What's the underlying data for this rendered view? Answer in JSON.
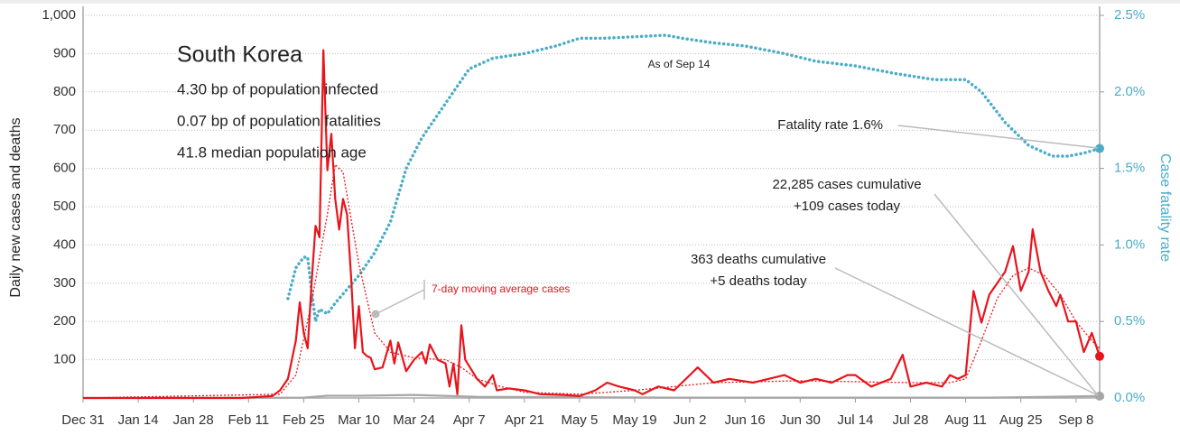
{
  "chart_data": {
    "type": "line",
    "title": "South Korea",
    "subtitle_lines": [
      "4.30 bp of population infected",
      "0.07 bp of population fatalities",
      "41.8 median population age"
    ],
    "ylabel": "Daily new cases and deaths",
    "y2label": "Case fatality rate",
    "annotations": [
      "As of Sep 14",
      "Fatality rate 1.6%",
      "22,285 cases cumulative",
      "+109 cases today",
      "363 deaths cumulative",
      "+5 deaths today"
    ],
    "xlim": [
      0,
      258
    ],
    "xticks": [
      {
        "value": 0,
        "label": "Dec 31"
      },
      {
        "value": 14,
        "label": "Jan 14"
      },
      {
        "value": 28,
        "label": "Jan 28"
      },
      {
        "value": 42,
        "label": "Feb 11"
      },
      {
        "value": 56,
        "label": "Feb 25"
      },
      {
        "value": 70,
        "label": "Mar 10"
      },
      {
        "value": 84,
        "label": "Mar 24"
      },
      {
        "value": 98,
        "label": "Apr 7"
      },
      {
        "value": 112,
        "label": "Apr 21"
      },
      {
        "value": 126,
        "label": "May 5"
      },
      {
        "value": 140,
        "label": "May 19"
      },
      {
        "value": 154,
        "label": "Jun 2"
      },
      {
        "value": 168,
        "label": "Jun 16"
      },
      {
        "value": 182,
        "label": "Jun 30"
      },
      {
        "value": 196,
        "label": "Jul 14"
      },
      {
        "value": 210,
        "label": "Jul 28"
      },
      {
        "value": 224,
        "label": "Aug 11"
      },
      {
        "value": 238,
        "label": "Aug 25"
      },
      {
        "value": 252,
        "label": "Sep 8"
      }
    ],
    "ylim": [
      0,
      1000
    ],
    "yticks": [
      100,
      200,
      300,
      400,
      500,
      600,
      700,
      800,
      900,
      {
        "value": 1000,
        "label": "1,000"
      }
    ],
    "y2lim": [
      0,
      2.5
    ],
    "y2ticks": [
      {
        "value": 0,
        "label": "0.0%"
      },
      {
        "value": 0.5,
        "label": "0.5%"
      },
      {
        "value": 1,
        "label": "1.0%"
      },
      {
        "value": 1.5,
        "label": "1.5%"
      },
      {
        "value": 2,
        "label": "2.0%"
      },
      {
        "value": 2.5,
        "label": "2.5%"
      }
    ],
    "grid": true,
    "series": [
      {
        "color": "#e8141c",
        "style": "solid",
        "end_marker": true,
        "x": [
          0,
          40,
          48,
          50,
          52,
          54,
          55,
          56,
          57,
          58,
          59,
          60,
          61,
          62,
          63,
          64,
          65,
          66,
          67,
          68,
          69,
          70,
          71,
          72,
          73,
          74,
          76,
          78,
          79,
          80,
          82,
          84,
          86,
          87,
          88,
          90,
          92,
          93,
          94,
          95,
          96,
          97,
          100,
          102,
          104,
          105,
          108,
          112,
          116,
          122,
          126,
          130,
          133,
          136,
          140,
          142,
          146,
          150,
          156,
          160,
          164,
          170,
          174,
          178,
          182,
          186,
          190,
          194,
          196,
          200,
          205,
          208,
          210,
          214,
          218,
          220,
          222,
          224,
          226,
          228,
          230,
          232,
          234,
          236,
          238,
          240,
          241,
          243,
          245,
          247,
          248,
          250,
          252,
          254,
          256,
          258
        ],
        "values": [
          0,
          0,
          5,
          20,
          50,
          150,
          250,
          170,
          130,
          300,
          450,
          420,
          909,
          595,
          690,
          520,
          440,
          520,
          480,
          320,
          130,
          240,
          120,
          110,
          105,
          75,
          80,
          150,
          90,
          145,
          70,
          100,
          120,
          90,
          140,
          100,
          90,
          30,
          90,
          10,
          190,
          100,
          50,
          30,
          60,
          20,
          25,
          20,
          10,
          8,
          5,
          20,
          40,
          30,
          20,
          10,
          30,
          20,
          80,
          40,
          50,
          40,
          50,
          60,
          40,
          50,
          40,
          60,
          60,
          30,
          50,
          113,
          30,
          40,
          30,
          60,
          50,
          60,
          280,
          197,
          270,
          300,
          330,
          397,
          280,
          330,
          441,
          330,
          280,
          240,
          270,
          200,
          200,
          120,
          170,
          109
        ]
      },
      {
        "name": "7-day moving average cases",
        "color": "#e8141c",
        "style": "dotted",
        "x": [
          0,
          50,
          54,
          58,
          62,
          64,
          66,
          70,
          74,
          78,
          84,
          92,
          96,
          100,
          106,
          112,
          126,
          140,
          150,
          160,
          182,
          210,
          220,
          224,
          228,
          232,
          236,
          240,
          244,
          248,
          252,
          256,
          258
        ],
        "values": [
          0,
          10,
          60,
          250,
          480,
          610,
          590,
          350,
          170,
          120,
          105,
          100,
          80,
          50,
          30,
          15,
          10,
          20,
          30,
          40,
          45,
          40,
          40,
          50,
          150,
          260,
          320,
          340,
          320,
          270,
          200,
          150,
          130
        ]
      },
      {
        "color": "#4bacc6",
        "style": "dots",
        "axis": "y2",
        "end_marker": true,
        "x": [
          52,
          54,
          56,
          57,
          58,
          59,
          60,
          62,
          64,
          66,
          70,
          74,
          78,
          82,
          86,
          90,
          94,
          98,
          104,
          112,
          120,
          126,
          132,
          140,
          148,
          152,
          160,
          168,
          178,
          186,
          196,
          206,
          216,
          224,
          228,
          234,
          240,
          246,
          250,
          254,
          258
        ],
        "values": [
          0.65,
          0.85,
          0.92,
          0.92,
          0.7,
          0.5,
          0.58,
          0.55,
          0.62,
          0.68,
          0.8,
          0.95,
          1.15,
          1.5,
          1.7,
          1.85,
          2.0,
          2.15,
          2.22,
          2.25,
          2.3,
          2.35,
          2.35,
          2.36,
          2.37,
          2.35,
          2.32,
          2.3,
          2.25,
          2.2,
          2.17,
          2.12,
          2.08,
          2.08,
          2.0,
          1.8,
          1.65,
          1.58,
          1.58,
          1.6,
          1.63
        ]
      },
      {
        "color": "#a6a6a6",
        "style": "solid",
        "end_marker": true,
        "x": [
          0,
          56,
          62,
          70,
          84,
          100,
          150,
          230,
          258
        ],
        "values": [
          0,
          1,
          6,
          6,
          8,
          3,
          1,
          1,
          5
        ]
      }
    ]
  }
}
